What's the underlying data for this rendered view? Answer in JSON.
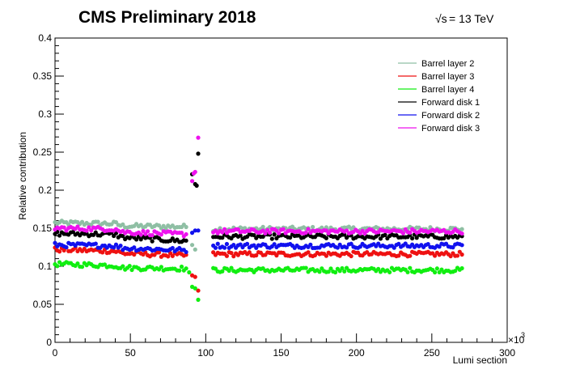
{
  "header": {
    "title": "CMS Preliminary 2018",
    "energy": "= 13 TeV",
    "energy_symbol": "√s"
  },
  "chart_data": {
    "type": "scatter",
    "title": "CMS Preliminary 2018",
    "xlabel": "Lumi section",
    "ylabel": "Relative contribution",
    "x_exponent": "×10",
    "x_exponent_power": "3",
    "xlim": [
      0,
      300
    ],
    "ylim": [
      0,
      0.4
    ],
    "x_ticks": [
      0,
      50,
      100,
      150,
      200,
      250,
      300
    ],
    "y_ticks": [
      0,
      0.05,
      0.1,
      0.15,
      0.2,
      0.25,
      0.3,
      0.35,
      0.4
    ],
    "x_tick_labels": [
      "0",
      "50",
      "100",
      "150",
      "200",
      "250",
      "300"
    ],
    "y_tick_labels": [
      "0",
      "0.05",
      "0.1",
      "0.15",
      "0.2",
      "0.25",
      "0.3",
      "0.35",
      "0.4"
    ],
    "legend_position": "top-right",
    "grid": false,
    "series": [
      {
        "name": "Barrel layer 2",
        "color": "#8fbfa4",
        "segments": [
          {
            "x": [
              0,
              40,
              45,
              88
            ],
            "y": [
              0.157,
              0.156,
              0.153,
              0.152
            ]
          },
          {
            "x": [
              105,
              270
            ],
            "y": [
              0.149,
              0.149
            ]
          }
        ],
        "dip": [
          [
            91,
            0.128
          ],
          [
            93,
            0.122
          ]
        ]
      },
      {
        "name": "Barrel layer 3",
        "color": "#ee1111",
        "segments": [
          {
            "x": [
              0,
              40,
              45,
              88
            ],
            "y": [
              0.122,
              0.12,
              0.117,
              0.114
            ]
          },
          {
            "x": [
              105,
              270
            ],
            "y": [
              0.116,
              0.116
            ]
          }
        ],
        "dip": [
          [
            91,
            0.088
          ],
          [
            93,
            0.086
          ],
          [
            95,
            0.068
          ]
        ]
      },
      {
        "name": "Barrel layer 4",
        "color": "#11ee11",
        "segments": [
          {
            "x": [
              0,
              40,
              45,
              88
            ],
            "y": [
              0.103,
              0.101,
              0.098,
              0.097
            ]
          },
          {
            "x": [
              105,
              270
            ],
            "y": [
              0.095,
              0.095
            ]
          }
        ],
        "dip": [
          [
            89,
            0.092
          ],
          [
            91,
            0.073
          ],
          [
            93,
            0.071
          ],
          [
            95,
            0.056
          ]
        ]
      },
      {
        "name": "Forward disk 1",
        "color": "#000000",
        "segments": [
          {
            "x": [
              0,
              40,
              45,
              88
            ],
            "y": [
              0.143,
              0.142,
              0.138,
              0.133
            ]
          },
          {
            "x": [
              105,
              270
            ],
            "y": [
              0.139,
              0.139
            ]
          }
        ],
        "dip": [
          [
            91,
            0.221
          ],
          [
            93,
            0.208
          ],
          [
            94,
            0.206
          ],
          [
            95,
            0.248
          ]
        ]
      },
      {
        "name": "Forward disk 2",
        "color": "#1111ee",
        "segments": [
          {
            "x": [
              0,
              40,
              45,
              88
            ],
            "y": [
              0.128,
              0.127,
              0.124,
              0.121
            ]
          },
          {
            "x": [
              105,
              270
            ],
            "y": [
              0.127,
              0.127
            ]
          }
        ],
        "dip": [
          [
            91,
            0.144
          ],
          [
            93,
            0.147
          ],
          [
            95,
            0.147
          ]
        ]
      },
      {
        "name": "Forward disk 3",
        "color": "#ee11ee",
        "segments": [
          {
            "x": [
              0,
              40,
              45,
              88
            ],
            "y": [
              0.15,
              0.149,
              0.145,
              0.142
            ]
          },
          {
            "x": [
              105,
              270
            ],
            "y": [
              0.146,
              0.146
            ]
          }
        ],
        "dip": [
          [
            91,
            0.212
          ],
          [
            92,
            0.222
          ],
          [
            93,
            0.224
          ],
          [
            95,
            0.269
          ]
        ]
      }
    ]
  }
}
